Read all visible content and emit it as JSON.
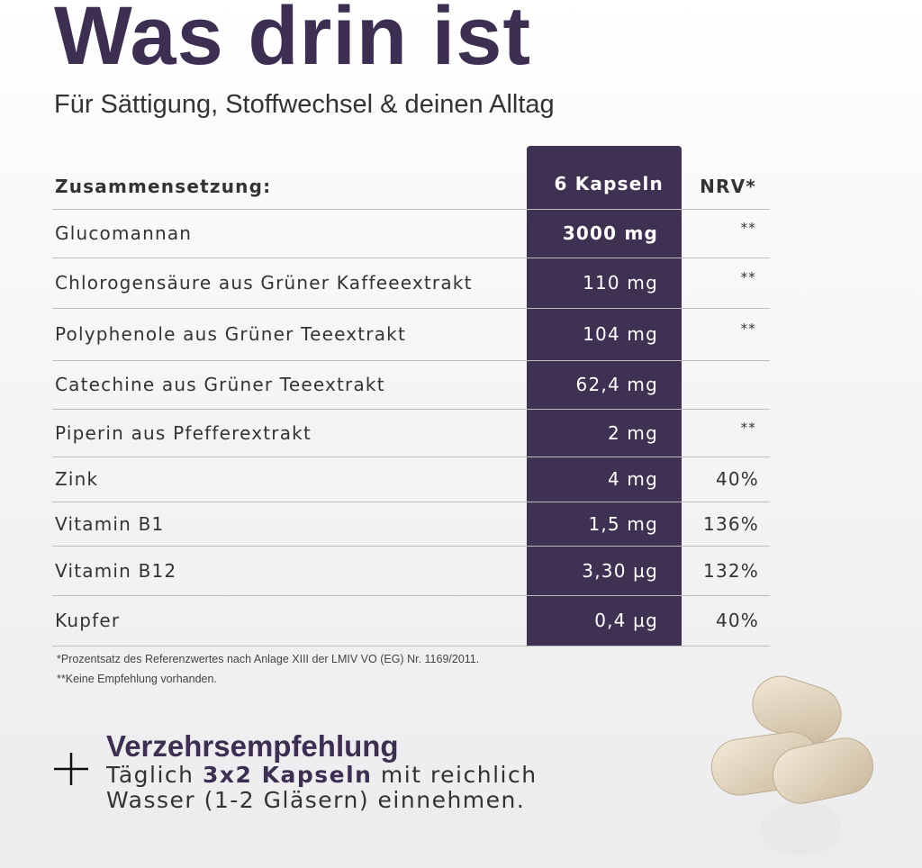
{
  "header": {
    "title": "Was drin ist",
    "subtitle": "Für Sättigung, Stoffwechsel & deinen Alltag"
  },
  "table": {
    "columns": [
      "Zusammensetzung:",
      "6 Kapseln",
      "NRV*"
    ],
    "rows": [
      {
        "name": "Glucomannan",
        "amount": "3000 mg",
        "nrv": "**"
      },
      {
        "name": "Chlorogensäure aus Grüner Kaffeeextrakt",
        "amount": "110 mg",
        "nrv": "**"
      },
      {
        "name": "Polyphenole aus Grüner Teeextrakt",
        "amount": "104 mg",
        "nrv": "**"
      },
      {
        "name": "Catechine aus Grüner Teeextrakt",
        "amount": "62,4 mg"
      },
      {
        "name": "Piperin aus Pfefferextrakt",
        "amount": "2 mg",
        "nrv": "**"
      },
      {
        "name": "Zink",
        "amount": "4 mg",
        "nrv": "40%"
      },
      {
        "name": "Vitamin B1",
        "amount": "1,5 mg",
        "nrv": "136%"
      },
      {
        "name": "Vitamin B12",
        "amount": "3,30 µg",
        "nrv": "132%"
      },
      {
        "name": "Kupfer",
        "amount": "0,4 µg",
        "nrv": "40%"
      }
    ]
  },
  "footnotes": [
    "*Prozentsatz des Referenzwertes nach Anlage XIII der LMIV VO  (EG) Nr. 1169/2011.",
    "**Keine Empfehlung vorhanden."
  ],
  "recommendation": {
    "title": "Verzehrsempfehlung",
    "text_before": "Täglich ",
    "text_bold": "3x2 Kapseln",
    "text_after": " mit reichlich",
    "text_line2": "Wasser (1-2 Gläsern) einnehmen."
  }
}
